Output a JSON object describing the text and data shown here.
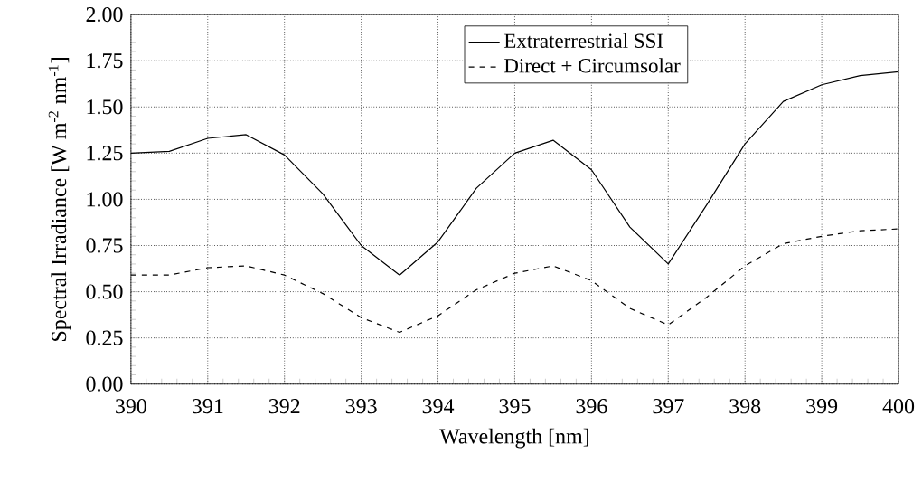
{
  "chart_data": {
    "type": "line",
    "xlabel": "Wavelength [nm]",
    "ylabel": "Spectral Irradiance [W m$^{-2}$ nm$^{-1}$]",
    "x": [
      390,
      390.5,
      391,
      391.5,
      392,
      392.5,
      393,
      393.5,
      394,
      394.5,
      395,
      395.5,
      396,
      396.5,
      397,
      397.5,
      398,
      398.5,
      399,
      399.5,
      400
    ],
    "series": [
      {
        "name": "Extraterrestrial SSI",
        "color": "#000000",
        "line_style": "solid",
        "values": [
          1.25,
          1.26,
          1.33,
          1.35,
          1.24,
          1.03,
          0.75,
          0.59,
          0.77,
          1.06,
          1.25,
          1.32,
          1.16,
          0.85,
          0.65,
          0.97,
          1.3,
          1.53,
          1.62,
          1.67,
          1.69
        ]
      },
      {
        "name": "Direct + Circumsolar",
        "color": "#000000",
        "line_style": "dashed",
        "values": [
          0.59,
          0.59,
          0.63,
          0.64,
          0.59,
          0.49,
          0.36,
          0.28,
          0.37,
          0.51,
          0.6,
          0.64,
          0.56,
          0.41,
          0.32,
          0.47,
          0.64,
          0.76,
          0.8,
          0.83,
          0.84
        ]
      }
    ],
    "xlim": [
      390,
      400
    ],
    "ylim": [
      0,
      2
    ],
    "xticks": [
      390,
      391,
      392,
      393,
      394,
      395,
      396,
      397,
      398,
      399,
      400
    ],
    "yticks": [
      {
        "value": 0,
        "label": "0.00"
      },
      {
        "value": 0.25,
        "label": "0.25"
      },
      {
        "value": 0.5,
        "label": "0.50"
      },
      {
        "value": 0.75,
        "label": "0.75"
      },
      {
        "value": 1,
        "label": "1.00"
      },
      {
        "value": 1.25,
        "label": "1.25"
      },
      {
        "value": 1.5,
        "label": "1.50"
      },
      {
        "value": 1.75,
        "label": "1.75"
      },
      {
        "value": 2,
        "label": "2.00"
      }
    ],
    "grid": true,
    "legend": "top",
    "marker": "none"
  }
}
